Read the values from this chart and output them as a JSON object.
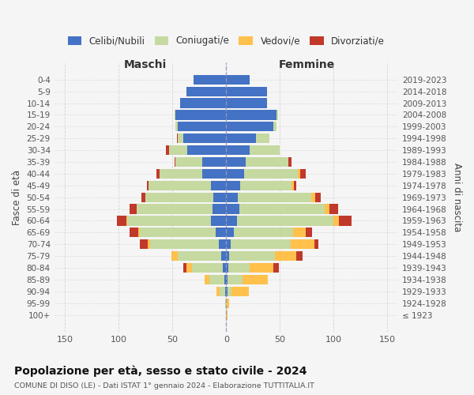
{
  "age_groups": [
    "100+",
    "95-99",
    "90-94",
    "85-89",
    "80-84",
    "75-79",
    "70-74",
    "65-69",
    "60-64",
    "55-59",
    "50-54",
    "45-49",
    "40-44",
    "35-39",
    "30-34",
    "25-29",
    "20-24",
    "15-19",
    "10-14",
    "5-9",
    "0-4"
  ],
  "birth_years": [
    "≤ 1923",
    "1924-1928",
    "1929-1933",
    "1934-1938",
    "1939-1943",
    "1944-1948",
    "1949-1953",
    "1954-1958",
    "1959-1963",
    "1964-1968",
    "1969-1973",
    "1974-1978",
    "1979-1983",
    "1984-1988",
    "1989-1993",
    "1994-1998",
    "1999-2003",
    "2004-2008",
    "2009-2013",
    "2014-2018",
    "2019-2023"
  ],
  "males": {
    "celibe": [
      0,
      0,
      1,
      2,
      3,
      5,
      7,
      10,
      14,
      13,
      12,
      14,
      22,
      22,
      36,
      40,
      45,
      47,
      43,
      37,
      30
    ],
    "coniugato": [
      0,
      1,
      5,
      14,
      29,
      40,
      64,
      70,
      78,
      70,
      63,
      58,
      40,
      25,
      17,
      5,
      2,
      1,
      0,
      0,
      0
    ],
    "vedovo": [
      0,
      0,
      3,
      4,
      5,
      6,
      2,
      2,
      1,
      0,
      0,
      0,
      0,
      0,
      0,
      0,
      0,
      0,
      0,
      0,
      0
    ],
    "divorziato": [
      0,
      0,
      0,
      0,
      3,
      0,
      7,
      8,
      9,
      7,
      4,
      2,
      3,
      1,
      3,
      1,
      0,
      0,
      0,
      0,
      0
    ]
  },
  "females": {
    "nubile": [
      0,
      0,
      1,
      1,
      2,
      3,
      4,
      7,
      10,
      12,
      11,
      13,
      17,
      18,
      22,
      28,
      44,
      47,
      38,
      38,
      22
    ],
    "coniugata": [
      0,
      0,
      4,
      14,
      20,
      42,
      56,
      55,
      90,
      80,
      68,
      48,
      50,
      40,
      28,
      12,
      3,
      1,
      0,
      0,
      0
    ],
    "vedova": [
      1,
      3,
      16,
      24,
      22,
      20,
      22,
      12,
      5,
      4,
      4,
      2,
      2,
      0,
      0,
      0,
      0,
      0,
      0,
      0,
      0
    ],
    "divorziata": [
      0,
      0,
      0,
      0,
      5,
      6,
      4,
      6,
      12,
      8,
      5,
      2,
      5,
      3,
      0,
      0,
      0,
      0,
      0,
      0,
      0
    ]
  },
  "color_celibe": "#4472c4",
  "color_coniugato": "#c5d9a0",
  "color_vedovo": "#ffc04c",
  "color_divorziato": "#c0392b",
  "xlim": 160,
  "xticks": [
    -150,
    -100,
    -50,
    0,
    50,
    100,
    150
  ],
  "title": "Popolazione per età, sesso e stato civile - 2024",
  "subtitle": "COMUNE DI DISO (LE) - Dati ISTAT 1° gennaio 2024 - Elaborazione TUTTITALIA.IT",
  "ylabel_left": "Fasce di età",
  "ylabel_right": "Anni di nascita",
  "xlabel_left": "Maschi",
  "xlabel_right": "Femmine",
  "legend_labels": [
    "Celibi/Nubili",
    "Coniugati/e",
    "Vedovi/e",
    "Divorziati/e"
  ],
  "bg_color": "#f5f5f5",
  "grid_color": "#cccccc"
}
